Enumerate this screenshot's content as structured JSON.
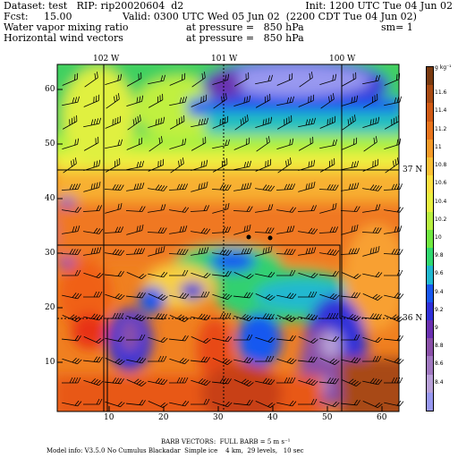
{
  "header": {
    "dataset": "Dataset: test   RIP: rip20020604  d2",
    "init": "Init: 1200 UTC Tue 04 Jun 02",
    "fcst": "Fcst:     15.00",
    "valid": "Valid: 0300 UTC Wed 05 Jun 02  (2200 CDT Tue 04 Jun 02)",
    "field1": "Water vapor mixing ratio",
    "field1_level": "at pressure =   850 hPa",
    "sm": "sm= 1",
    "field2": "Horizontal wind vectors",
    "field2_level": "at pressure =   850 hPa"
  },
  "map": {
    "x_ticks": [
      "10",
      "20",
      "30",
      "40",
      "50",
      "60"
    ],
    "y_ticks": [
      "10",
      "20",
      "30",
      "40",
      "50",
      "60"
    ],
    "longitudes": [
      "102 W",
      "101 W",
      "100 W"
    ],
    "latitudes": [
      "37 N",
      "36 N"
    ]
  },
  "colorbar": {
    "unit": "g kg⁻¹",
    "labels": [
      "11.6",
      "11.4",
      "11.2",
      "11",
      "10.8",
      "10.6",
      "10.4",
      "10.2",
      "10",
      "9.8",
      "9.6",
      "9.4",
      "9.2",
      "9",
      "8.8",
      "8.6",
      "8.4"
    ],
    "colors": [
      "#7a3a10",
      "#a84a12",
      "#d05a14",
      "#e8741c",
      "#f49a28",
      "#f9c034",
      "#fde040",
      "#e8f040",
      "#b8f040",
      "#70e840",
      "#30d870",
      "#20b8d0",
      "#1858f0",
      "#3030d8",
      "#6a30b0",
      "#8a50a8",
      "#a078c0",
      "#b8a0d8",
      "#9898f0"
    ]
  },
  "footer": {
    "barb": "BARB VECTORS:  FULL BARB = 5 m s⁻¹",
    "model": "Model info: V3.5.0 No Cumulus Blackadar  Simple ice    4 km,  29 levels,   10 sec"
  },
  "colors": {
    "frame": "#000000"
  }
}
